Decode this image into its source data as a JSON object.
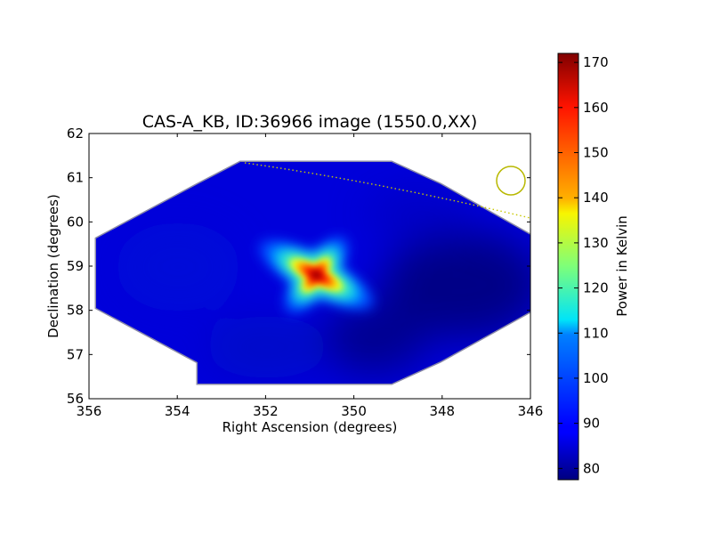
{
  "chart_data": {
    "type": "heatmap",
    "title": "CAS-A_KB, ID:36966 image (1550.0,XX)",
    "xlabel": "Right Ascension (degrees)",
    "ylabel": "Declination (degrees)",
    "xlim": [
      356,
      346
    ],
    "ylim": [
      56,
      62
    ],
    "xticks": [
      "356",
      "354",
      "352",
      "350",
      "348",
      "346"
    ],
    "yticks": [
      "56",
      "57",
      "58",
      "59",
      "60",
      "61",
      "62"
    ],
    "colorbar": {
      "label": "Power in Kelvin",
      "range": [
        77.5,
        172
      ],
      "ticks": [
        "80",
        "90",
        "100",
        "110",
        "120",
        "130",
        "140",
        "150",
        "160",
        "170"
      ],
      "colormap": "jet"
    },
    "source": {
      "center_ra": 350.85,
      "center_dec": 58.8,
      "peak_kelvin": 172
    },
    "background_kelvin": 86,
    "footprint_outline_color": "#8a8aa8",
    "overlays": [
      {
        "kind": "dotted-curve",
        "color": "#c8c800"
      },
      {
        "kind": "circle",
        "color": "#b8b800"
      }
    ]
  }
}
